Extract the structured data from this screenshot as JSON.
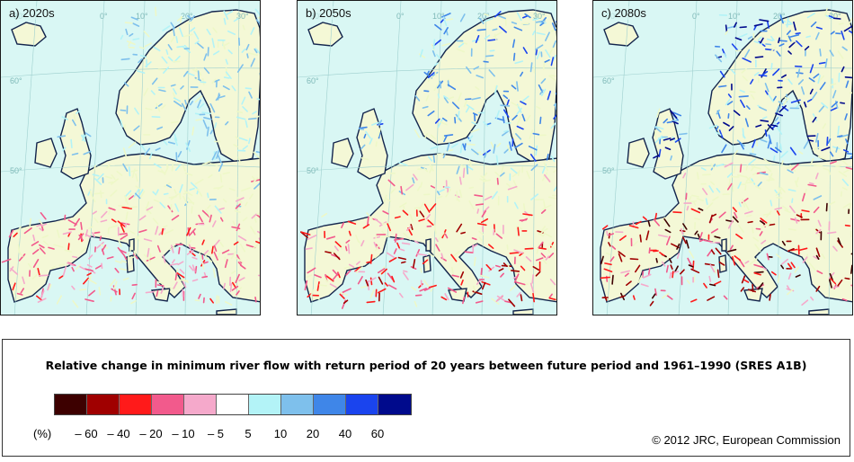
{
  "panels": [
    {
      "label": "a) 2020s",
      "severity": 0.25
    },
    {
      "label": "b) 2050s",
      "severity": 0.6
    },
    {
      "label": "c) 2080s",
      "severity": 1.0
    }
  ],
  "graticule": {
    "longitudes": [
      "30°",
      "0°",
      "10°",
      "20°",
      "30°"
    ],
    "latitudes": [
      "60°",
      "50°"
    ]
  },
  "legend": {
    "title": "Relative change in minimum river flow with return period of 20 years between future period and 1961–1990 (SRES A1B)",
    "unit": "(%)",
    "colors": [
      "#3d0000",
      "#a00000",
      "#ff1a1a",
      "#f25a8c",
      "#f5a9cb",
      "#ffffff",
      "#b3f3f7",
      "#7ec0ec",
      "#3f86e8",
      "#1a44ee",
      "#000a8c"
    ],
    "ticks": [
      "– 60",
      "– 40",
      "– 20",
      "– 10",
      "– 5",
      "5",
      "10",
      "20",
      "40",
      "60"
    ]
  },
  "copyright": "© 2012 JRC, European Commission"
}
